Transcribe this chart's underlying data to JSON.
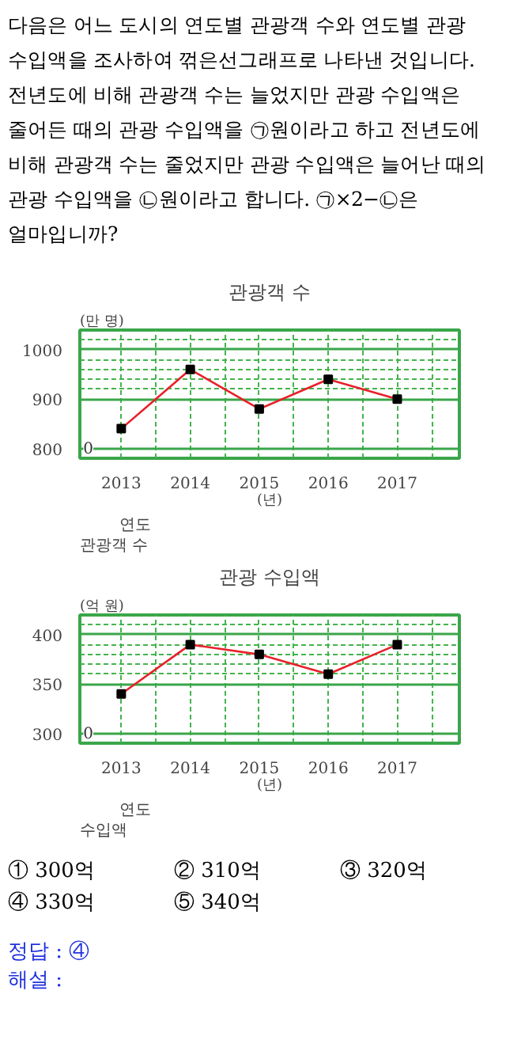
{
  "chart_data": [
    {
      "type": "line",
      "title": "관광객 수",
      "ylabel": "(만 명)",
      "xlabel": "(년)",
      "categories": [
        "2013",
        "2014",
        "2015",
        "2016",
        "2017"
      ],
      "series": [
        {
          "color": "#e8202a",
          "values": [
            840,
            960,
            880,
            940,
            900
          ]
        }
      ],
      "ylim": [
        780,
        1040
      ],
      "yticks": [
        800,
        900,
        1000
      ],
      "grid": true,
      "marker": "square",
      "line_style": "solid",
      "annotations": [
        "다음은 어느 도시의 연도별 관광객 수와 연도별 관광 수입액을 조사하여 꺾은선그래프로 나타낸 것입니다. 전년도에 비해 관광객 수는 늘었지만 관광 수입액은 줄어든 때의 관광 수입액을 ㉠원이라고 하고 전년도에 비해 관광객 수는 줄었지만 관광 수입액은 늘어난 때의 관광 수입액을 ㉡원이라고 합니다. ㉠×2−㉡은 얼마입니까?",
        "관광객 수",
        "연도",
        "0"
      ]
    },
    {
      "type": "line",
      "title": "관광 수입액",
      "ylabel": "(억 원)",
      "xlabel": "(년)",
      "categories": [
        "2013",
        "2014",
        "2015",
        "2016",
        "2017"
      ],
      "series": [
        {
          "color": "#e8202a",
          "values": [
            340,
            390,
            380,
            360,
            390
          ]
        }
      ],
      "ylim": [
        290,
        420
      ],
      "yticks": [
        300,
        350,
        400
      ],
      "grid": true,
      "marker": "square",
      "line_style": "solid",
      "annotations": [
        "수입액",
        "연도",
        "0",
        "① 300억",
        "② 310억",
        "③ 320억",
        "④ 330억",
        "⑤ 340억",
        "정답 : ④",
        "해설 :"
      ]
    }
  ]
}
